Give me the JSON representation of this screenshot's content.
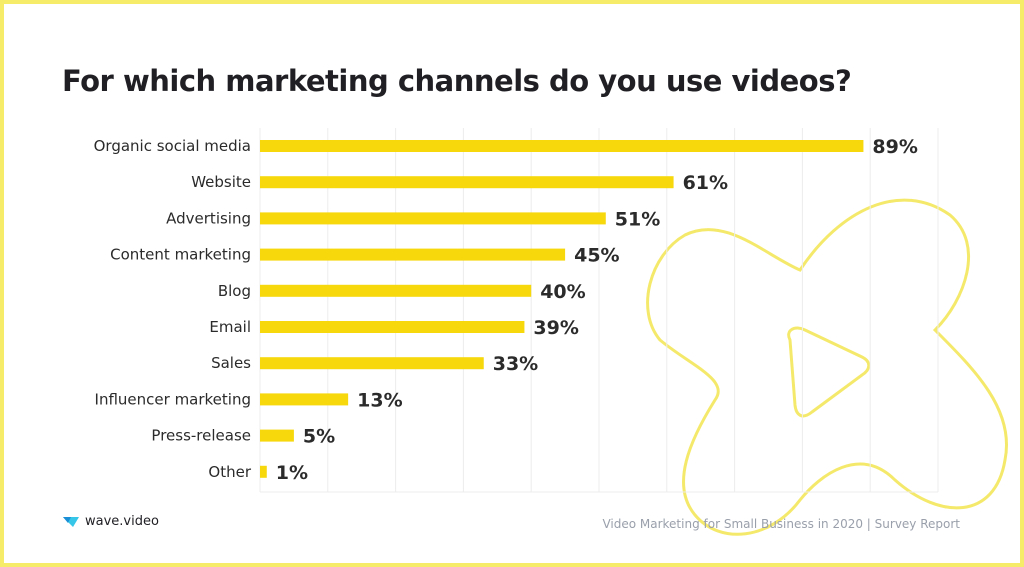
{
  "brand": {
    "name": "wave.video"
  },
  "footer": {
    "text": "Video Marketing for Small Business in 2020 | Survey Report"
  },
  "colors": {
    "bar": "#f6d80d",
    "frame": "#f7ec6a",
    "decoration": "#f5e96b",
    "grid": "#ececec",
    "text": "#2b2b2b"
  },
  "chart_data": {
    "type": "bar",
    "orientation": "horizontal",
    "title": "For which marketing channels do you use videos?",
    "categories": [
      "Organic social media",
      "Website",
      "Advertising",
      "Content marketing",
      "Blog",
      "Email",
      "Sales",
      "Influencer marketing",
      "Press-release",
      "Other"
    ],
    "values": [
      89,
      61,
      51,
      45,
      40,
      39,
      33,
      13,
      5,
      1
    ],
    "value_labels": [
      "89%",
      "61%",
      "51%",
      "45%",
      "40%",
      "39%",
      "33%",
      "13%",
      "5%",
      "1%"
    ],
    "xlim": [
      0,
      100
    ],
    "grid": true,
    "legend": "none"
  }
}
